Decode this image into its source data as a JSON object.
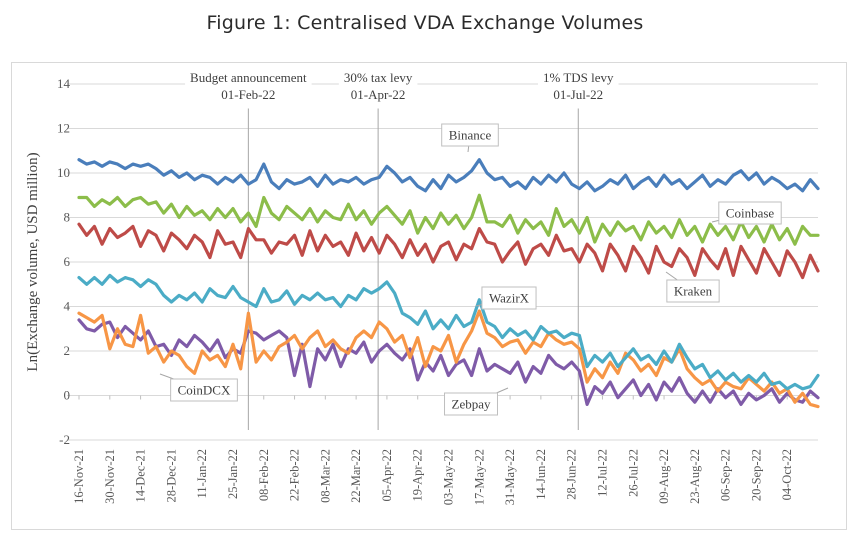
{
  "figure": {
    "title": "Figure 1: Centralised VDA Exchange Volumes"
  },
  "chart_data": {
    "type": "line",
    "title": "Figure 1: Centralised VDA Exchange Volumes",
    "xlabel": "",
    "ylabel": "Ln(Exchange volume, USD million)",
    "ylim": [
      -2,
      14
    ],
    "yticks": [
      -2,
      0,
      2,
      4,
      6,
      8,
      10,
      12,
      14
    ],
    "grid": "horizontal",
    "legend": "callout labels on lines",
    "x_tick_labels": [
      "16-Nov-21",
      "30-Nov-21",
      "14-Dec-21",
      "28-Dec-21",
      "11-Jan-22",
      "25-Jan-22",
      "08-Feb-22",
      "22-Feb-22",
      "08-Mar-22",
      "22-Mar-22",
      "05-Apr-22",
      "19-Apr-22",
      "03-May-22",
      "17-May-22",
      "31-May-22",
      "14-Jun-22",
      "28-Jun-22",
      "12-Jul-22",
      "26-Jul-22",
      "09-Aug-22",
      "23-Aug-22",
      "06-Sep-22",
      "20-Sep-22",
      "04-Oct-22"
    ],
    "x_start": "16-Nov-21",
    "x_end": "18-Oct-22",
    "event_lines": [
      {
        "label": "Budget announcement",
        "date": "01-Feb-22"
      },
      {
        "label": "30% tax levy",
        "date": "01-Apr-22"
      },
      {
        "label": "1% TDS levy",
        "date": "01-Jul-22"
      }
    ],
    "series_note": "Approximate values sampled every ~3.5 days from 16-Nov-21 to 18-Oct-22 (97 points)",
    "series": [
      {
        "name": "Binance",
        "color": "#4a7ebb",
        "values": [
          10.6,
          10.4,
          10.5,
          10.3,
          10.5,
          10.4,
          10.2,
          10.4,
          10.3,
          10.4,
          10.2,
          9.9,
          10.1,
          9.8,
          10.0,
          9.7,
          9.9,
          9.8,
          9.5,
          9.8,
          9.6,
          9.9,
          9.5,
          9.7,
          10.4,
          9.6,
          9.3,
          9.7,
          9.5,
          9.6,
          9.8,
          9.4,
          9.9,
          9.5,
          9.7,
          9.6,
          9.8,
          9.5,
          9.7,
          9.8,
          10.3,
          10.0,
          9.6,
          9.8,
          9.4,
          9.2,
          9.7,
          9.3,
          9.9,
          9.6,
          9.8,
          10.1,
          10.6,
          10.0,
          9.7,
          9.8,
          9.4,
          9.6,
          9.3,
          9.8,
          9.5,
          9.9,
          9.6,
          10.0,
          9.5,
          9.3,
          9.6,
          9.2,
          9.4,
          9.7,
          9.5,
          9.9,
          9.3,
          9.6,
          9.8,
          9.4,
          9.9,
          9.5,
          9.7,
          9.3,
          9.6,
          9.9,
          9.4,
          9.7,
          9.5,
          9.9,
          10.1,
          9.7,
          10.0,
          9.5,
          9.8,
          9.6,
          9.3,
          9.5,
          9.2,
          9.7,
          9.3
        ]
      },
      {
        "name": "Coinbase",
        "color": "#8cbd4a",
        "values": [
          8.9,
          8.9,
          8.5,
          8.8,
          8.6,
          8.9,
          8.5,
          8.8,
          8.9,
          8.6,
          8.7,
          8.2,
          8.6,
          8.0,
          8.5,
          8.1,
          8.3,
          7.9,
          8.4,
          8.0,
          8.4,
          7.8,
          8.2,
          7.6,
          8.9,
          8.2,
          7.9,
          8.5,
          8.2,
          7.9,
          8.4,
          7.8,
          8.3,
          8.0,
          7.9,
          8.6,
          7.9,
          8.3,
          7.7,
          8.2,
          8.5,
          8.1,
          7.7,
          8.3,
          7.3,
          8.0,
          7.5,
          8.2,
          7.7,
          8.1,
          7.5,
          8.0,
          9.0,
          7.8,
          7.8,
          7.6,
          8.1,
          7.3,
          7.9,
          7.5,
          7.8,
          7.2,
          8.4,
          7.6,
          7.9,
          7.3,
          8.0,
          6.9,
          7.7,
          7.2,
          7.8,
          7.4,
          7.6,
          7.0,
          7.8,
          7.3,
          7.6,
          7.1,
          7.9,
          7.2,
          7.6,
          6.9,
          7.7,
          7.2,
          7.6,
          7.0,
          7.8,
          7.1,
          7.6,
          6.9,
          7.7,
          7.0,
          7.5,
          6.8,
          7.6,
          7.2,
          7.2
        ]
      },
      {
        "name": "Kraken",
        "color": "#be4b48",
        "values": [
          7.7,
          7.2,
          7.6,
          6.8,
          7.5,
          7.1,
          7.3,
          7.6,
          6.7,
          7.4,
          7.2,
          6.5,
          7.3,
          7.0,
          6.6,
          7.2,
          6.9,
          6.2,
          7.4,
          6.8,
          6.9,
          6.2,
          7.5,
          7.0,
          7.0,
          6.4,
          6.9,
          6.8,
          7.2,
          6.3,
          7.4,
          6.5,
          7.2,
          6.7,
          6.9,
          6.3,
          7.3,
          6.5,
          7.1,
          6.4,
          7.2,
          6.8,
          6.2,
          7.0,
          6.3,
          6.8,
          6.0,
          6.7,
          6.9,
          6.1,
          6.8,
          6.6,
          7.5,
          6.9,
          6.8,
          6.0,
          6.5,
          6.9,
          5.9,
          6.6,
          6.8,
          6.3,
          7.2,
          6.5,
          6.6,
          6.0,
          6.8,
          6.4,
          5.6,
          6.8,
          6.3,
          5.6,
          6.7,
          6.2,
          5.5,
          6.7,
          6.0,
          5.8,
          6.6,
          6.2,
          5.4,
          6.6,
          6.1,
          5.7,
          6.6,
          5.4,
          6.7,
          6.1,
          5.5,
          6.6,
          6.0,
          5.4,
          6.5,
          6.0,
          5.3,
          6.3,
          5.6
        ]
      },
      {
        "name": "WazirX",
        "color": "#4bacc6",
        "values": [
          5.3,
          5.0,
          5.3,
          5.0,
          5.4,
          5.1,
          5.3,
          5.2,
          4.9,
          5.2,
          5.0,
          4.5,
          4.2,
          4.5,
          4.3,
          4.6,
          4.2,
          4.8,
          4.5,
          4.4,
          4.9,
          4.4,
          4.2,
          4.0,
          4.8,
          4.2,
          4.3,
          4.7,
          4.1,
          4.5,
          4.3,
          4.6,
          4.3,
          4.4,
          4.0,
          4.5,
          4.3,
          4.8,
          4.6,
          4.8,
          5.1,
          4.6,
          3.7,
          3.5,
          3.2,
          3.8,
          3.0,
          3.4,
          3.0,
          3.6,
          3.1,
          3.3,
          4.3,
          3.3,
          3.1,
          2.6,
          3.0,
          2.7,
          2.9,
          2.5,
          3.1,
          2.8,
          2.9,
          2.6,
          2.8,
          2.7,
          1.3,
          1.8,
          1.5,
          1.9,
          1.3,
          1.7,
          2.1,
          1.6,
          1.8,
          1.4,
          2.0,
          1.5,
          2.3,
          1.7,
          1.2,
          1.4,
          0.8,
          1.1,
          0.7,
          1.0,
          0.6,
          0.9,
          0.6,
          1.0,
          0.5,
          0.6,
          0.3,
          0.5,
          0.3,
          0.4,
          0.9
        ]
      },
      {
        "name": "CoinDCX",
        "color": "#f79646",
        "values": [
          3.7,
          3.5,
          3.3,
          3.6,
          2.1,
          3.0,
          2.3,
          2.2,
          3.6,
          1.9,
          2.2,
          1.5,
          2.0,
          1.8,
          1.3,
          1.0,
          2.0,
          1.6,
          1.8,
          1.3,
          2.3,
          1.2,
          3.7,
          1.5,
          2.0,
          1.6,
          2.2,
          2.4,
          2.7,
          2.1,
          2.6,
          2.9,
          2.2,
          2.5,
          2.1,
          1.9,
          2.6,
          2.9,
          2.6,
          3.3,
          3.0,
          2.4,
          2.7,
          1.7,
          2.6,
          1.3,
          2.2,
          2.0,
          2.7,
          1.5,
          2.3,
          2.9,
          3.8,
          2.8,
          2.6,
          2.2,
          2.4,
          2.5,
          1.9,
          2.4,
          2.2,
          2.8,
          2.5,
          2.3,
          2.4,
          2.1,
          0.6,
          1.2,
          0.8,
          1.5,
          1.0,
          1.9,
          1.6,
          1.1,
          1.4,
          0.9,
          1.7,
          1.5,
          2.1,
          1.2,
          0.8,
          0.5,
          0.7,
          0.2,
          0.6,
          0.4,
          0.3,
          0.8,
          0.5,
          0.2,
          0.6,
          0.1,
          0.3,
          -0.3,
          0.1,
          -0.4,
          -0.5
        ]
      },
      {
        "name": "Zebpay",
        "color": "#7f5ba8",
        "values": [
          3.4,
          3.0,
          2.9,
          3.2,
          3.3,
          2.6,
          3.1,
          2.8,
          2.5,
          2.9,
          2.2,
          2.3,
          1.8,
          2.5,
          2.2,
          2.7,
          2.4,
          2.0,
          2.5,
          1.7,
          2.1,
          1.9,
          2.9,
          2.8,
          2.5,
          2.7,
          2.9,
          2.6,
          0.9,
          2.3,
          0.4,
          2.1,
          1.6,
          2.3,
          1.3,
          2.1,
          1.9,
          2.4,
          1.5,
          2.0,
          2.3,
          1.9,
          1.6,
          2.1,
          0.7,
          1.5,
          1.1,
          1.8,
          0.9,
          1.4,
          1.6,
          0.9,
          2.1,
          1.1,
          1.4,
          1.2,
          1.0,
          1.5,
          0.6,
          1.3,
          1.0,
          1.8,
          1.4,
          1.2,
          1.5,
          1.1,
          -0.4,
          0.4,
          0.1,
          0.6,
          -0.1,
          0.3,
          0.7,
          0.0,
          0.5,
          -0.2,
          0.6,
          0.2,
          0.8,
          0.1,
          -0.3,
          0.2,
          -0.3,
          0.3,
          -0.1,
          0.2,
          -0.4,
          0.1,
          -0.2,
          0.0,
          0.3,
          -0.3,
          0.1,
          -0.2,
          -0.3,
          0.2,
          -0.1
        ]
      }
    ],
    "callouts": [
      {
        "series": "Binance",
        "label": "Binance"
      },
      {
        "series": "Coinbase",
        "label": "Coinbase"
      },
      {
        "series": "Kraken",
        "label": "Kraken"
      },
      {
        "series": "WazirX",
        "label": "WazirX"
      },
      {
        "series": "CoinDCX",
        "label": "CoinDCX"
      },
      {
        "series": "Zebpay",
        "label": "Zebpay"
      }
    ]
  }
}
